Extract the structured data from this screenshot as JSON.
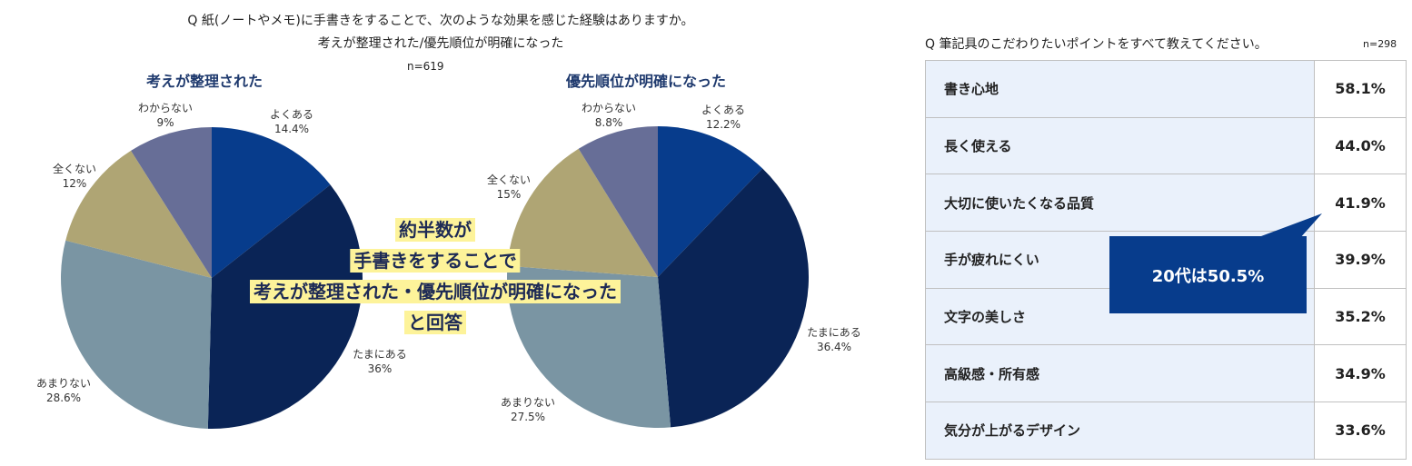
{
  "left_panel": {
    "question_line1": "Q 紙(ノートやメモ)に手書きをすることで、次のような効果を感じた経験はありますか。",
    "question_line2": "考えが整理された/優先順位が明確になった",
    "n": "n=619",
    "overlay_lines": [
      "約半数が",
      "手書きをすることで",
      "考えが整理された・優先順位が明確になった",
      "と回答"
    ]
  },
  "right_panel": {
    "question": "Q 筆記具のこだわりたいポイントをすべて教えてください。",
    "n": "n=298",
    "callout": "20代は50.5%"
  },
  "colors": {
    "yoku_aru": "#073c8c",
    "tamani_aru": "#0a2456",
    "amari_nai": "#7a95a3",
    "mattaku_nai": "#afa574",
    "wakaranai": "#676e97",
    "highlight": "#fdf39a",
    "table_item_bg": "#eaf1fb"
  },
  "chart_data": [
    {
      "type": "pie",
      "title": "考えが整理された",
      "categories": [
        "よくある",
        "たまにある",
        "あまりない",
        "全くない",
        "わからない"
      ],
      "values": [
        14.4,
        36,
        28.6,
        12,
        9
      ],
      "value_labels": [
        "14.4%",
        "36%",
        "28.6%",
        "12%",
        "9%"
      ]
    },
    {
      "type": "pie",
      "title": "優先順位が明確になった",
      "categories": [
        "よくある",
        "たまにある",
        "あまりない",
        "全くない",
        "わからない"
      ],
      "values": [
        12.2,
        36.4,
        27.5,
        15,
        8.8
      ],
      "value_labels": [
        "12.2%",
        "36.4%",
        "27.5%",
        "15%",
        "8.8%"
      ]
    },
    {
      "type": "table",
      "categories": [
        "書き心地",
        "長く使える",
        "大切に使いたくなる品質",
        "手が疲れにくい",
        "文字の美しさ",
        "高級感・所有感",
        "気分が上がるデザイン"
      ],
      "values": [
        58.1,
        44.0,
        41.9,
        39.9,
        35.2,
        34.9,
        33.6
      ],
      "value_labels": [
        "58.1%",
        "44.0%",
        "41.9%",
        "39.9%",
        "35.2%",
        "34.9%",
        "33.6%"
      ]
    }
  ]
}
